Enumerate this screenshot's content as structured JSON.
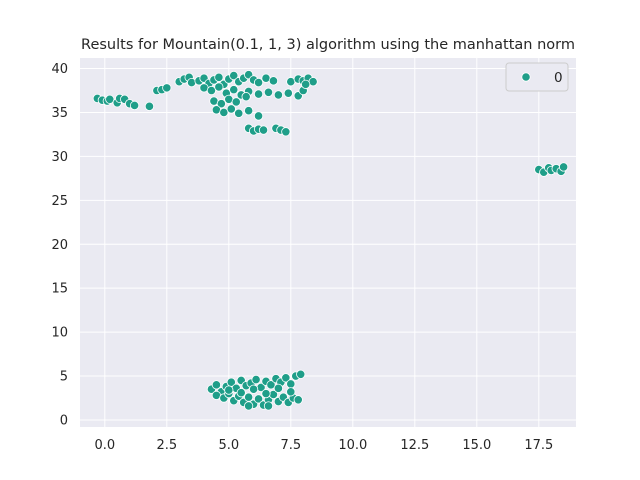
{
  "chart_data": {
    "type": "scatter",
    "title": "Results for Mountain(0.1, 1, 3) algorithm using the manhattan norm",
    "xlabel": "",
    "ylabel": "",
    "xlim": [
      -1.0,
      19.0
    ],
    "ylim": [
      -0.8,
      41.2
    ],
    "xticks": [
      0.0,
      2.5,
      5.0,
      7.5,
      10.0,
      12.5,
      15.0,
      17.5
    ],
    "xtick_labels": [
      "0.0",
      "2.5",
      "5.0",
      "7.5",
      "10.0",
      "12.5",
      "15.0",
      "17.5"
    ],
    "yticks": [
      0,
      5,
      10,
      15,
      20,
      25,
      30,
      35,
      40
    ],
    "ytick_labels": [
      "0",
      "5",
      "10",
      "15",
      "20",
      "25",
      "30",
      "35",
      "40"
    ],
    "grid": true,
    "legend": {
      "position": "top-right",
      "entries": [
        "0"
      ]
    },
    "colors": {
      "series": "#1f9e89",
      "background": "#eaeaf2",
      "grid": "#ffffff",
      "edge": "#ffffff"
    },
    "series": [
      {
        "name": "0",
        "points": [
          [
            -0.3,
            36.6
          ],
          [
            -0.1,
            36.4
          ],
          [
            0.1,
            36.3
          ],
          [
            0.2,
            36.5
          ],
          [
            0.5,
            36.1
          ],
          [
            0.6,
            36.6
          ],
          [
            0.8,
            36.5
          ],
          [
            1.0,
            36.0
          ],
          [
            1.2,
            35.8
          ],
          [
            1.8,
            35.7
          ],
          [
            2.1,
            37.5
          ],
          [
            2.3,
            37.6
          ],
          [
            2.5,
            37.8
          ],
          [
            3.0,
            38.5
          ],
          [
            3.2,
            38.8
          ],
          [
            3.4,
            39.0
          ],
          [
            3.5,
            38.4
          ],
          [
            3.8,
            38.6
          ],
          [
            4.0,
            38.9
          ],
          [
            4.2,
            38.3
          ],
          [
            4.4,
            38.7
          ],
          [
            4.6,
            39.0
          ],
          [
            4.8,
            38.2
          ],
          [
            5.0,
            38.8
          ],
          [
            5.2,
            39.2
          ],
          [
            5.4,
            38.5
          ],
          [
            5.6,
            38.9
          ],
          [
            5.8,
            39.3
          ],
          [
            6.0,
            38.7
          ],
          [
            6.2,
            38.4
          ],
          [
            6.5,
            38.9
          ],
          [
            6.8,
            38.6
          ],
          [
            4.0,
            37.8
          ],
          [
            4.3,
            37.5
          ],
          [
            4.6,
            37.9
          ],
          [
            4.9,
            37.2
          ],
          [
            5.2,
            37.6
          ],
          [
            5.5,
            37.0
          ],
          [
            5.8,
            37.4
          ],
          [
            6.2,
            37.1
          ],
          [
            6.6,
            37.3
          ],
          [
            7.0,
            37.0
          ],
          [
            7.4,
            37.2
          ],
          [
            7.8,
            36.9
          ],
          [
            8.0,
            37.5
          ],
          [
            4.4,
            36.3
          ],
          [
            4.7,
            36.0
          ],
          [
            5.0,
            36.5
          ],
          [
            5.3,
            36.2
          ],
          [
            5.7,
            36.8
          ],
          [
            4.5,
            35.3
          ],
          [
            4.8,
            35.0
          ],
          [
            5.1,
            35.4
          ],
          [
            5.4,
            34.9
          ],
          [
            5.8,
            35.2
          ],
          [
            6.2,
            34.6
          ],
          [
            7.5,
            38.5
          ],
          [
            7.8,
            38.8
          ],
          [
            8.0,
            38.6
          ],
          [
            8.2,
            38.9
          ],
          [
            8.4,
            38.5
          ],
          [
            8.1,
            38.2
          ],
          [
            5.8,
            33.2
          ],
          [
            6.0,
            32.9
          ],
          [
            6.2,
            33.1
          ],
          [
            6.4,
            33.0
          ],
          [
            6.9,
            33.2
          ],
          [
            7.1,
            33.0
          ],
          [
            7.3,
            32.8
          ],
          [
            17.5,
            28.5
          ],
          [
            17.7,
            28.2
          ],
          [
            17.9,
            28.7
          ],
          [
            18.0,
            28.4
          ],
          [
            18.2,
            28.6
          ],
          [
            18.4,
            28.3
          ],
          [
            18.5,
            28.8
          ],
          [
            4.3,
            3.5
          ],
          [
            4.5,
            4.0
          ],
          [
            4.7,
            3.2
          ],
          [
            4.9,
            3.8
          ],
          [
            5.1,
            4.3
          ],
          [
            5.3,
            3.6
          ],
          [
            5.5,
            4.5
          ],
          [
            5.7,
            3.9
          ],
          [
            5.9,
            4.2
          ],
          [
            6.1,
            4.6
          ],
          [
            6.3,
            3.7
          ],
          [
            6.5,
            4.4
          ],
          [
            6.7,
            4.0
          ],
          [
            6.9,
            4.7
          ],
          [
            7.1,
            4.3
          ],
          [
            7.3,
            4.8
          ],
          [
            7.5,
            4.1
          ],
          [
            7.7,
            5.0
          ],
          [
            7.9,
            5.2
          ],
          [
            4.5,
            2.8
          ],
          [
            4.8,
            2.5
          ],
          [
            5.0,
            3.0
          ],
          [
            5.2,
            2.2
          ],
          [
            5.4,
            2.7
          ],
          [
            5.6,
            2.0
          ],
          [
            5.8,
            2.6
          ],
          [
            6.0,
            1.8
          ],
          [
            6.2,
            2.4
          ],
          [
            6.4,
            1.7
          ],
          [
            6.6,
            2.3
          ],
          [
            6.8,
            2.9
          ],
          [
            7.0,
            2.1
          ],
          [
            7.2,
            2.6
          ],
          [
            7.4,
            2.0
          ],
          [
            7.6,
            2.5
          ],
          [
            7.8,
            2.3
          ],
          [
            5.0,
            3.4
          ],
          [
            5.5,
            3.1
          ],
          [
            6.0,
            3.5
          ],
          [
            6.5,
            3.0
          ],
          [
            7.0,
            3.6
          ],
          [
            7.5,
            3.2
          ],
          [
            5.8,
            1.6
          ],
          [
            6.6,
            1.6
          ]
        ]
      }
    ]
  }
}
